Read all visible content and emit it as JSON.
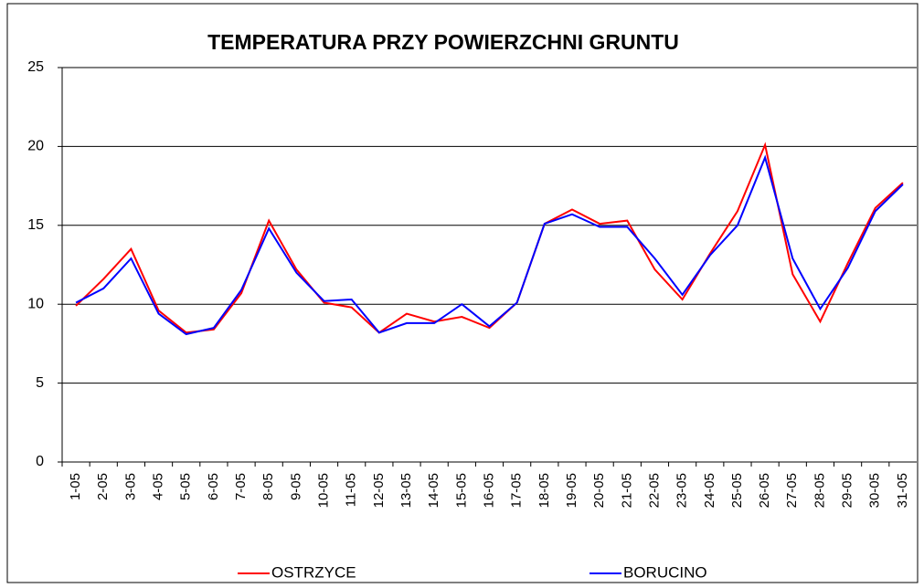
{
  "chart_data": {
    "type": "line",
    "title": "TEMPERATURA PRZY POWIERZCHNI GRUNTU",
    "categories": [
      "1-05",
      "2-05",
      "3-05",
      "4-05",
      "5-05",
      "6-05",
      "7-05",
      "8-05",
      "9-05",
      "10-05",
      "11-05",
      "12-05",
      "13-05",
      "14-05",
      "15-05",
      "16-05",
      "17-05",
      "18-05",
      "19-05",
      "20-05",
      "21-05",
      "22-05",
      "23-05",
      "24-05",
      "25-05",
      "26-05",
      "27-05",
      "28-05",
      "29-05",
      "30-05",
      "31-05"
    ],
    "series": [
      {
        "name": "OSTRZYCE",
        "color": "#ff0000",
        "values": [
          9.9,
          11.6,
          13.5,
          9.6,
          8.2,
          8.4,
          10.7,
          15.3,
          12.2,
          10.1,
          9.8,
          8.2,
          9.4,
          8.9,
          9.2,
          8.5,
          10.1,
          15.1,
          16.0,
          15.1,
          15.3,
          12.2,
          10.3,
          13.2,
          15.9,
          20.1,
          11.9,
          8.9,
          12.6,
          16.1,
          17.7
        ]
      },
      {
        "name": "BORUCINO",
        "color": "#0000ff",
        "values": [
          10.1,
          11.0,
          12.9,
          9.4,
          8.1,
          8.5,
          10.9,
          14.8,
          12.0,
          10.2,
          10.3,
          8.2,
          8.8,
          8.8,
          10.0,
          8.6,
          10.1,
          15.1,
          15.7,
          14.9,
          14.9,
          12.9,
          10.6,
          13.1,
          15.0,
          19.3,
          12.9,
          9.7,
          12.3,
          15.9,
          17.6
        ]
      }
    ],
    "ylim": [
      0,
      25
    ],
    "yticks": [
      0,
      5,
      10,
      15,
      20,
      25
    ],
    "grid": true,
    "legend": "bottom"
  }
}
